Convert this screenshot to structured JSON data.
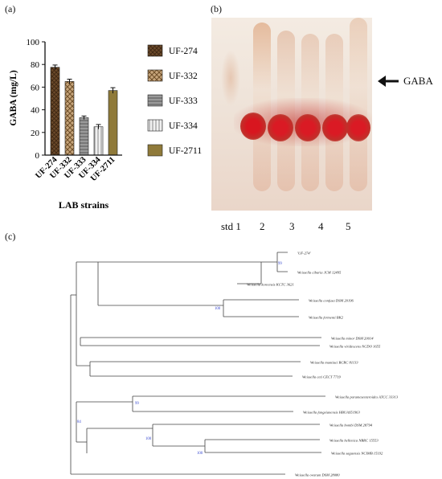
{
  "panels": {
    "a": "(a)",
    "b": "(b)",
    "c": "(c)"
  },
  "chart_data": [
    {
      "type": "bar",
      "categories": [
        "UF-274",
        "UF-332",
        "UF-333",
        "UF-334",
        "UF-2711"
      ],
      "values": [
        77.5,
        65,
        33,
        25,
        57
      ],
      "errors": [
        2,
        2,
        1.5,
        2,
        2.5
      ],
      "xlabel": "LAB strains",
      "ylabel": "GABA (mg/L)",
      "ylim": [
        0,
        100
      ],
      "yticks": [
        "0",
        "20",
        "40",
        "60",
        "80",
        "100"
      ],
      "legend": [
        "UF-274",
        "UF-332",
        "UF-333",
        "UF-334",
        "UF-2711"
      ],
      "legend_position": "right",
      "colors": [
        "#6b4a2a",
        "#b48e5e",
        "#8a8a8a",
        "#d8d8d8",
        "#8f7a3a"
      ]
    }
  ],
  "tlc": {
    "arrow_label": "GABA",
    "lanes": [
      "std 1",
      "2",
      "3",
      "4",
      "5"
    ],
    "spot_color": "#d8161f"
  },
  "tree": {
    "taxa": [
      "'UF-274'",
      "Weissella cibaria JCM 12495",
      "Weissella koreensis KCTC 3621",
      "Weissella confusa DSM 20196",
      "Weissella fermenti BK2",
      "Weissella minor DSM 20014",
      "Weissella viridescens NCDO 1655",
      "Weissella muntiaci BCRC 81133",
      "Weissella ceti CECT 7719",
      "Weissella paramesenteroides ATCC 33313",
      "Weissella fangxianensis HBUAS51963",
      "Weissella bombi DSM 28794",
      "Weissella hellenica NBRC 15553",
      "Weissella sagaensis NCIMB 15192",
      "Weissella ovarum DSM 28080"
    ],
    "bootstrap": [
      "99",
      "100",
      "99",
      "84",
      "100",
      "100"
    ],
    "bootstrap_color": "#3a4bd0"
  }
}
